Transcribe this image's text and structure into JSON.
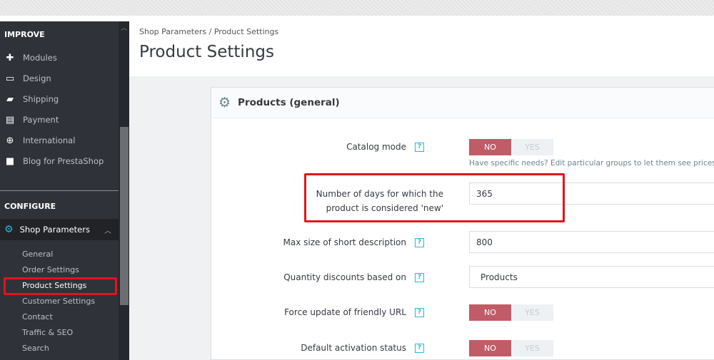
{
  "sidebar": {
    "improve": "IMPROVE",
    "improve_items": [
      {
        "label": "Modules",
        "icon": "puzzle-icon"
      },
      {
        "label": "Design",
        "icon": "monitor-icon"
      },
      {
        "label": "Shipping",
        "icon": "truck-icon"
      },
      {
        "label": "Payment",
        "icon": "credit-card-icon"
      },
      {
        "label": "International",
        "icon": "globe-icon"
      },
      {
        "label": "Blog for PrestaShop",
        "icon": "document-icon"
      }
    ],
    "configure": "CONFIGURE",
    "active": {
      "label": "Shop Parameters",
      "icon": "gear-icon"
    },
    "sub_items": [
      "General",
      "Order Settings",
      "Product Settings",
      "Customer Settings",
      "Contact",
      "Traffic & SEO",
      "Search"
    ],
    "current": "Product Settings"
  },
  "header": {
    "breadcrumb": [
      "Shop Parameters",
      "Product Settings"
    ],
    "separator": "/",
    "title": "Product Settings"
  },
  "panel": {
    "title": "Products (general)",
    "help": "?",
    "catalog_mode": {
      "label": "Catalog mode",
      "no": "NO",
      "yes": "YES",
      "value": "NO",
      "hint": "Have specific needs? Edit particular groups to let them see prices or"
    },
    "new_days": {
      "label_line1": "Number of days for which the",
      "label_line2": "product is considered 'new'",
      "value": "365"
    },
    "short_desc": {
      "label": "Max size of short description",
      "value": "800"
    },
    "qty_discount": {
      "label": "Quantity discounts based on",
      "value": "Products"
    },
    "friendly_url": {
      "label": "Force update of friendly URL",
      "no": "NO",
      "yes": "YES",
      "value": "NO"
    },
    "activation": {
      "label": "Default activation status",
      "no": "NO",
      "yes": "YES",
      "value": "NO"
    }
  },
  "colors": {
    "accent": "#25b9d7",
    "switch_no": "#c05c67",
    "highlight": "#e0141e",
    "sidebar": "#2f3238"
  }
}
